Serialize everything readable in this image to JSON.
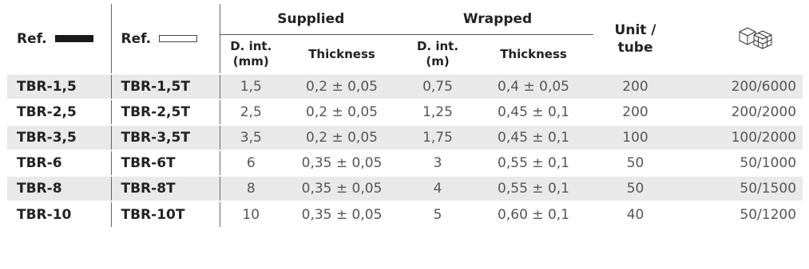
{
  "header": {
    "ref_solid": "Ref.",
    "ref_hollow": "Ref.",
    "supplied": "Supplied",
    "wrapped": "Wrapped",
    "unit_line1": "Unit /",
    "unit_line2": "tube",
    "supplied_dint_line1": "D. int.",
    "supplied_dint_line2": "(mm)",
    "supplied_thickness": "Thickness",
    "wrapped_dint_line1": "D. int.",
    "wrapped_dint_line2": "(m)",
    "wrapped_thickness": "Thickness",
    "pack_icon": "boxes-icon"
  },
  "rows": [
    {
      "ref": "TBR-1,5",
      "ref_t": "TBR-1,5T",
      "sup_d": "1,5",
      "sup_t": "0,2 ± 0,05",
      "wr_d": "0,75",
      "wr_t": "0,4 ± 0,05",
      "unit": "200",
      "pack": "200/6000"
    },
    {
      "ref": "TBR-2,5",
      "ref_t": "TBR-2,5T",
      "sup_d": "2,5",
      "sup_t": "0,2 ± 0,05",
      "wr_d": "1,25",
      "wr_t": "0,45 ± 0,1",
      "unit": "200",
      "pack": "200/2000"
    },
    {
      "ref": "TBR-3,5",
      "ref_t": "TBR-3,5T",
      "sup_d": "3,5",
      "sup_t": "0,2 ± 0,05",
      "wr_d": "1,75",
      "wr_t": "0,45 ± 0,1",
      "unit": "100",
      "pack": "100/2000"
    },
    {
      "ref": "TBR-6",
      "ref_t": "TBR-6T",
      "sup_d": "6",
      "sup_t": "0,35 ± 0,05",
      "wr_d": "3",
      "wr_t": "0,55 ± 0,1",
      "unit": "50",
      "pack": "50/1000"
    },
    {
      "ref": "TBR-8",
      "ref_t": "TBR-8T",
      "sup_d": "8",
      "sup_t": "0,35 ± 0,05",
      "wr_d": "4",
      "wr_t": "0,55 ± 0,1",
      "unit": "50",
      "pack": "50/1500"
    },
    {
      "ref": "TBR-10",
      "ref_t": "TBR-10T",
      "sup_d": "10",
      "sup_t": "0,35 ± 0,05",
      "wr_d": "5",
      "wr_t": "0,60 ± 0,1",
      "unit": "40",
      "pack": "50/1200"
    }
  ]
}
